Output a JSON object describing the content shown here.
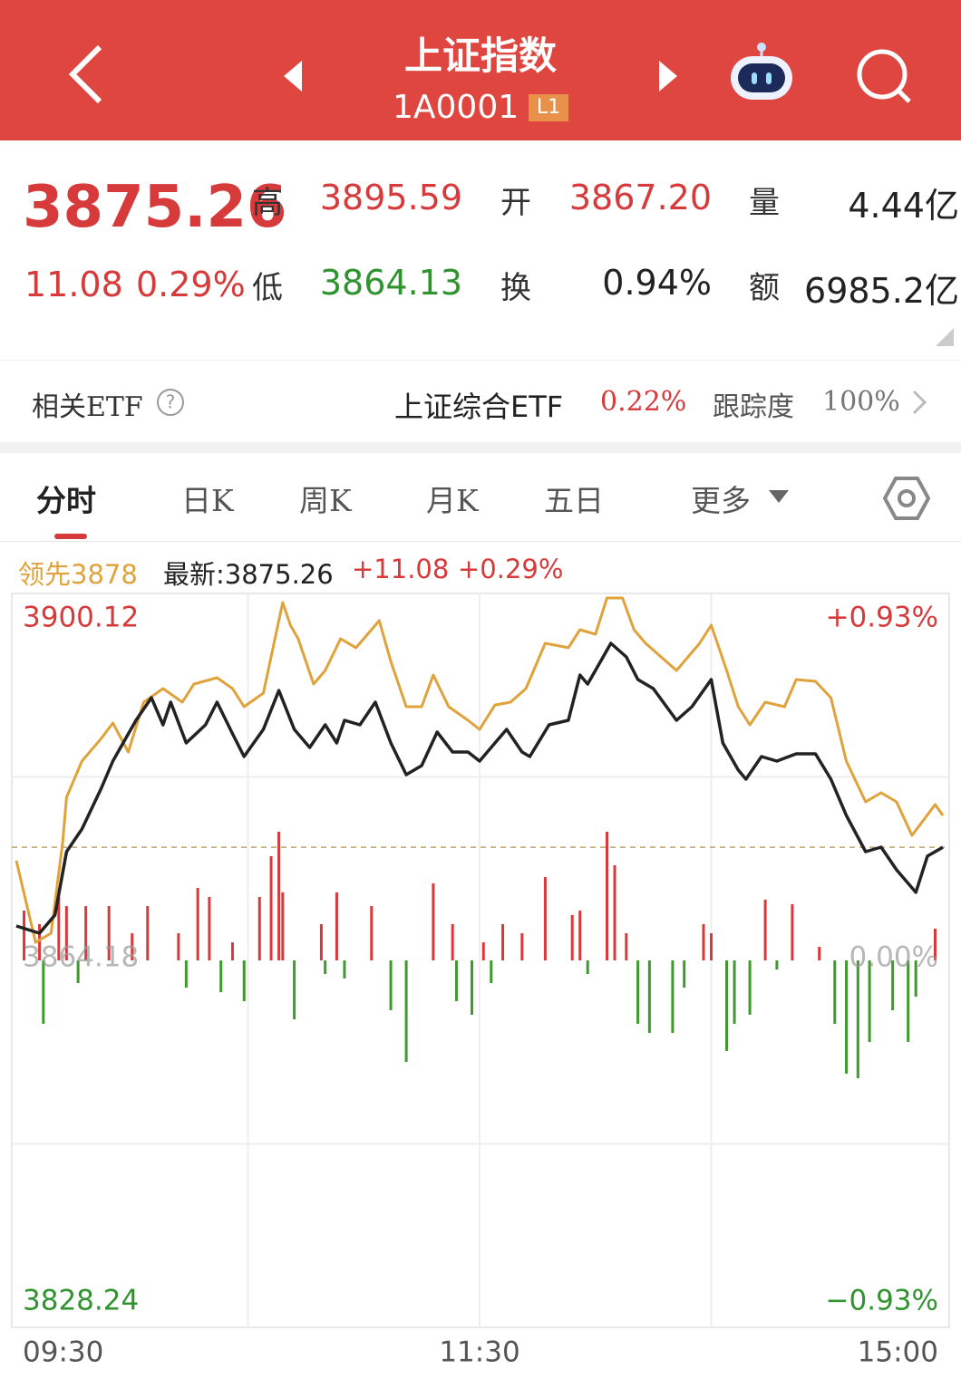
{
  "header": {
    "title": "上证指数",
    "code": "1A0001",
    "badge": "L1"
  },
  "quote": {
    "price": "3875.26",
    "change": "11.08",
    "change_pct": "0.29%",
    "fields": [
      {
        "label": "高",
        "value": "3895.59"
      },
      {
        "label": "开",
        "value": "3867.20"
      },
      {
        "label": "量",
        "value": "4.44亿"
      },
      {
        "label": "低",
        "value": "3864.13"
      },
      {
        "label": "换",
        "value": "0.94%"
      },
      {
        "label": "额",
        "value": "6985.2亿"
      }
    ]
  },
  "etf": {
    "label": "相关ETF",
    "name": "上证综合ETF",
    "change": "0.22%",
    "tracking_label": "跟踪度",
    "tracking": "100%"
  },
  "tabs": [
    "分时",
    "日K",
    "周K",
    "月K",
    "五日",
    "更多"
  ],
  "legend_row": {
    "leader": "领先3878",
    "latest": "最新:3875.26",
    "change": "+11.08",
    "change_pct": "+0.29%"
  },
  "chart_data": {
    "type": "line",
    "series": [
      {
        "color": "#e0a23a",
        "x": [
          0,
          5,
          9,
          12,
          13,
          17,
          22,
          25,
          29,
          33,
          38,
          43,
          46,
          52,
          56,
          59,
          64,
          69,
          71,
          73,
          77,
          80,
          84,
          88,
          94,
          97,
          101,
          105,
          108,
          112,
          117,
          120,
          124,
          128,
          132,
          137,
          143,
          146,
          150,
          153,
          157,
          160,
          163,
          167,
          171,
          177,
          180,
          184,
          187,
          190,
          194,
          199,
          202,
          207,
          211,
          215,
          220,
          224,
          228,
          232,
          235,
          238,
          240
        ],
        "values": [
          3873.94,
          3865.95,
          3866.84,
          3875.72,
          3880.15,
          3883.7,
          3885.92,
          3887.43,
          3884.59,
          3889.47,
          3890.8,
          3889.47,
          3891.25,
          3891.87,
          3890.8,
          3889.03,
          3890.36,
          3899.23,
          3897.01,
          3895.68,
          3891.25,
          3892.58,
          3895.68,
          3894.8,
          3897.46,
          3893.46,
          3889.03,
          3889.03,
          3892.13,
          3889.03,
          3887.7,
          3886.81,
          3889.2,
          3889.47,
          3890.8,
          3895.24,
          3894.8,
          3896.57,
          3896.13,
          3899.68,
          3899.68,
          3896.57,
          3895.24,
          3893.91,
          3892.58,
          3895.24,
          3897.01,
          3892.58,
          3889.03,
          3887.25,
          3889.47,
          3889.03,
          3891.69,
          3891.51,
          3889.91,
          3883.7,
          3879.71,
          3880.6,
          3879.71,
          3876.43,
          3877.93,
          3879.44,
          3878.38
        ]
      },
      {
        "color": "#222222",
        "x": [
          0,
          6,
          10,
          13,
          17,
          22,
          25,
          31,
          35,
          38,
          40,
          44,
          49,
          52,
          56,
          59,
          64,
          68,
          72,
          76,
          80,
          83,
          85,
          89,
          93,
          97,
          101,
          105,
          109,
          113,
          117,
          120,
          124,
          127,
          131,
          133,
          138,
          143,
          146,
          148,
          152,
          154,
          158,
          161,
          165,
          171,
          175,
          180,
          183,
          187,
          189,
          193,
          197,
          202,
          207,
          211,
          215,
          220,
          224,
          228,
          233,
          236,
          240
        ],
        "values": [
          3867.55,
          3866.84,
          3868.62,
          3874.83,
          3877.05,
          3881.04,
          3883.7,
          3887.7,
          3889.91,
          3887.25,
          3889.47,
          3885.48,
          3887.25,
          3889.47,
          3886.37,
          3884.15,
          3886.81,
          3890.62,
          3886.81,
          3885.03,
          3887.25,
          3885.48,
          3887.7,
          3887.25,
          3889.47,
          3885.48,
          3882.37,
          3883.26,
          3886.54,
          3884.59,
          3884.59,
          3883.7,
          3885.48,
          3886.81,
          3884.59,
          3884.15,
          3887.25,
          3887.7,
          3892.13,
          3891.25,
          3893.91,
          3895.24,
          3893.91,
          3891.69,
          3890.8,
          3887.7,
          3889.03,
          3891.69,
          3885.48,
          3882.82,
          3881.93,
          3884.15,
          3883.7,
          3884.41,
          3884.41,
          3881.93,
          3878.38,
          3874.83,
          3875.27,
          3873.05,
          3870.84,
          3874.39,
          3875.26
        ]
      }
    ],
    "bars": {
      "up_color": "#d9393b",
      "down_color": "#3e9a2c",
      "x": [
        2,
        6,
        11,
        13,
        18,
        24,
        30,
        34,
        42,
        47,
        50,
        56,
        63,
        66,
        68,
        69,
        79,
        83,
        92,
        108,
        113,
        121,
        126,
        131,
        137,
        144,
        146,
        153,
        155,
        158,
        178,
        180,
        194,
        201,
        208,
        238,
        7,
        16,
        44,
        53,
        59,
        72,
        80,
        85,
        97,
        101,
        114,
        118,
        123,
        148,
        161,
        164,
        170,
        173,
        184,
        186,
        190,
        197,
        212,
        215,
        218,
        221,
        227,
        231,
        233
      ],
      "values": [
        4.88,
        3.55,
        6.21,
        5.32,
        5.32,
        5.32,
        2.66,
        5.32,
        2.66,
        7.1,
        6.21,
        1.77,
        6.21,
        10.21,
        12.6,
        6.66,
        3.55,
        6.66,
        5.32,
        7.54,
        3.55,
        1.77,
        3.55,
        2.66,
        8.16,
        4.44,
        4.88,
        12.6,
        9.32,
        2.66,
        3.55,
        2.66,
        5.95,
        5.5,
        1.33,
        3.11,
        -6.21,
        -2.22,
        -2.66,
        -3.11,
        -3.99,
        -5.77,
        -1.33,
        -1.77,
        -4.88,
        -9.94,
        -3.99,
        -5.32,
        -2.22,
        -1.33,
        -6.21,
        -7.1,
        -7.1,
        -2.66,
        -8.87,
        -6.21,
        -5.32,
        -0.89,
        -6.21,
        -11.09,
        -11.54,
        -7.99,
        -4.88,
        -7.99,
        -3.55
      ]
    },
    "reference_line": 3875.26,
    "xlim": [
      0,
      240
    ],
    "xticks": [
      {
        "value": 0,
        "label": "09:30"
      },
      {
        "value": 120,
        "label": "11:30"
      },
      {
        "value": 240,
        "label": "15:00"
      }
    ],
    "ylim": [
      3828.24,
      3900.12
    ],
    "yticks": [
      3900.12,
      3864.18,
      3828.24
    ],
    "y2lim": [
      -0.93,
      0.93
    ],
    "y2ticks": [
      {
        "value": 0.93,
        "label": "+0.93%"
      },
      {
        "value": 0,
        "label": "0.00%"
      },
      {
        "value": -0.93,
        "label": "−0.93%"
      }
    ]
  }
}
